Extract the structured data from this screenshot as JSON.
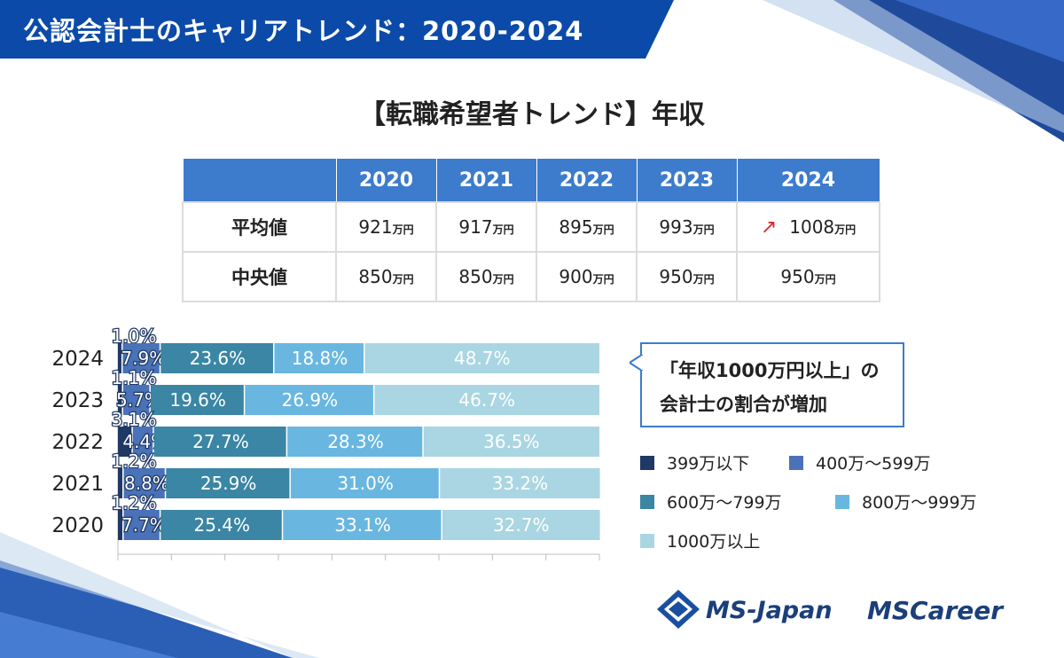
{
  "banner": {
    "title": "公認会計士のキャリアトレンド：2020‐2024"
  },
  "section_title": "【転職希望者トレンド】年収",
  "table": {
    "headers": [
      "2020",
      "2021",
      "2022",
      "2023",
      "2024"
    ],
    "unit": "万円",
    "rows": [
      {
        "label": "平均値",
        "values": [
          "921",
          "917",
          "895",
          "993",
          "1008"
        ],
        "trend_arrow": "up-arrow-icon"
      },
      {
        "label": "中央値",
        "values": [
          "850",
          "850",
          "900",
          "950",
          "950"
        ]
      }
    ]
  },
  "callout": {
    "line1": "「年収1000万円以上」の",
    "line2": "会計士の割合が増加"
  },
  "legend": [
    {
      "label": "399万以下",
      "color": "#1f3864"
    },
    {
      "label": "400万～599万",
      "color": "#4a72b8"
    },
    {
      "label": "600万～799万",
      "color": "#3a86a4"
    },
    {
      "label": "800万～999万",
      "color": "#69b7e0"
    },
    {
      "label": "1000万以上",
      "color": "#a9d6e2"
    }
  ],
  "chart_data": {
    "type": "bar",
    "orientation": "horizontal",
    "stacked": true,
    "categories": [
      "2024",
      "2023",
      "2022",
      "2021",
      "2020"
    ],
    "series": [
      {
        "name": "399万以下",
        "values": [
          1.0,
          1.1,
          3.1,
          1.2,
          1.2
        ],
        "labels": [
          "1.0%",
          "1.1%",
          "3.1%",
          "1.2%",
          "1.2%"
        ]
      },
      {
        "name": "400万～599万",
        "values": [
          7.9,
          5.7,
          4.4,
          8.8,
          7.7
        ],
        "labels": [
          "7.9%",
          "5.7%",
          "4.4%",
          "8.8%",
          "7.7%"
        ]
      },
      {
        "name": "600万～799万",
        "values": [
          23.6,
          19.6,
          27.7,
          25.9,
          25.4
        ],
        "labels": [
          "23.6%",
          "19.6%",
          "27.7%",
          "25.9%",
          "25.4%"
        ]
      },
      {
        "name": "800万～999万",
        "values": [
          18.8,
          26.9,
          28.3,
          31.0,
          33.1
        ],
        "labels": [
          "18.8%",
          "26.9%",
          "28.3%",
          "31.0%",
          "33.1%"
        ]
      },
      {
        "name": "1000万以上",
        "values": [
          48.7,
          46.7,
          36.5,
          33.2,
          32.7
        ],
        "labels": [
          "48.7%",
          "46.7%",
          "36.5%",
          "33.2%",
          "32.7%"
        ]
      }
    ],
    "xlim": [
      0,
      100
    ],
    "colors": [
      "#1f3864",
      "#4a72b8",
      "#3a86a4",
      "#69b7e0",
      "#a9d6e2"
    ]
  },
  "logos": {
    "ms_japan": "MS-Japan",
    "ms_career_ms": "MS",
    "ms_career_rest": "Career"
  }
}
